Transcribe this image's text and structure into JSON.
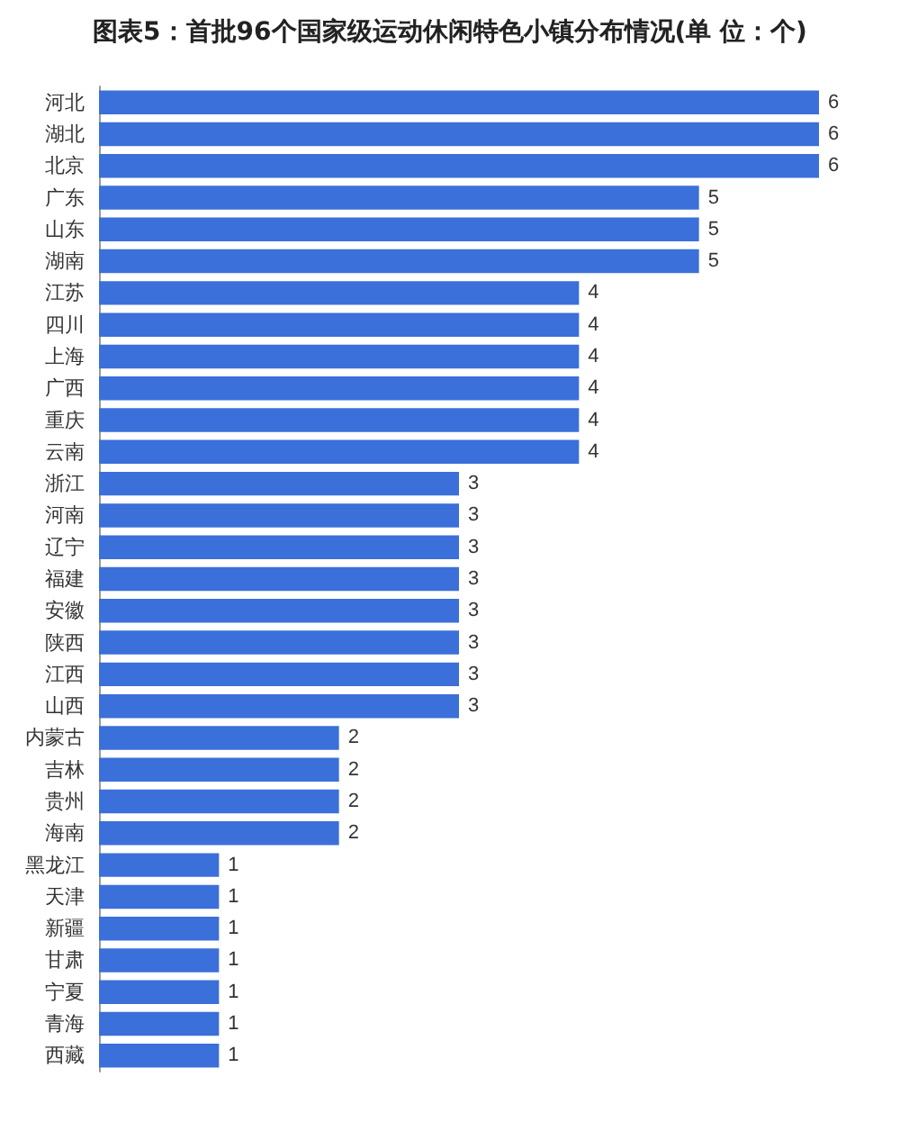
{
  "chart_data": {
    "type": "bar",
    "orientation": "horizontal",
    "title": "图表5：首批96个国家级运动休闲特色小镇分布情况(单 位：个)",
    "categories": [
      "河北",
      "湖北",
      "北京",
      "广东",
      "山东",
      "湖南",
      "江苏",
      "四川",
      "上海",
      "广西",
      "重庆",
      "云南",
      "浙江",
      "河南",
      "辽宁",
      "福建",
      "安徽",
      "陕西",
      "江西",
      "山西",
      "内蒙古",
      "吉林",
      "贵州",
      "海南",
      "黑龙江",
      "天津",
      "新疆",
      "甘肃",
      "宁夏",
      "青海",
      "西藏"
    ],
    "values": [
      6,
      6,
      6,
      5,
      5,
      5,
      4,
      4,
      4,
      4,
      4,
      4,
      3,
      3,
      3,
      3,
      3,
      3,
      3,
      3,
      2,
      2,
      2,
      2,
      1,
      1,
      1,
      1,
      1,
      1,
      1
    ],
    "color": "#3b6fd9",
    "data_labels": true
  }
}
